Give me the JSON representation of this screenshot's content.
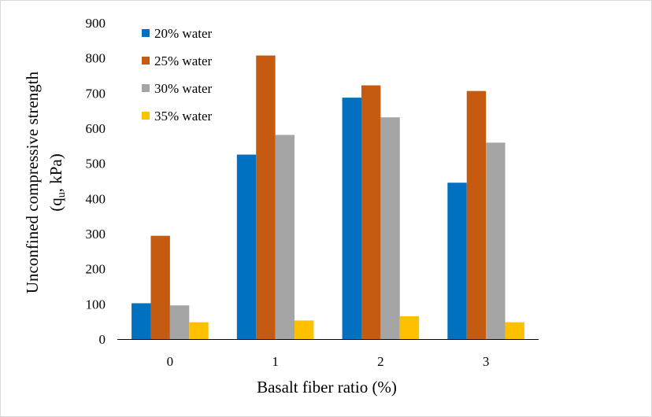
{
  "chart_data": {
    "type": "bar",
    "categories": [
      "0",
      "1",
      "2",
      "3"
    ],
    "series": [
      {
        "name": "20% water",
        "color": "#0070C0",
        "values": [
          102,
          525,
          687,
          445
        ]
      },
      {
        "name": "25% water",
        "color": "#C55A11",
        "values": [
          294,
          807,
          722,
          706
        ]
      },
      {
        "name": "30% water",
        "color": "#A5A5A5",
        "values": [
          96,
          581,
          631,
          559
        ]
      },
      {
        "name": "35% water",
        "color": "#FFC000",
        "values": [
          48,
          53,
          65,
          48
        ]
      }
    ],
    "title": "",
    "xlabel": "Basalt fiber ratio (%)",
    "ylabel_line1": "Unconfined compressive strength",
    "ylabel_line2_pre": "(q",
    "ylabel_line2_sub": "u",
    "ylabel_line2_post": ", kPa)",
    "ylim": [
      0,
      900
    ],
    "yticks": [
      "0",
      "100",
      "200",
      "300",
      "400",
      "500",
      "600",
      "700",
      "800",
      "900"
    ],
    "grid": false,
    "legend_position": "top-left"
  }
}
